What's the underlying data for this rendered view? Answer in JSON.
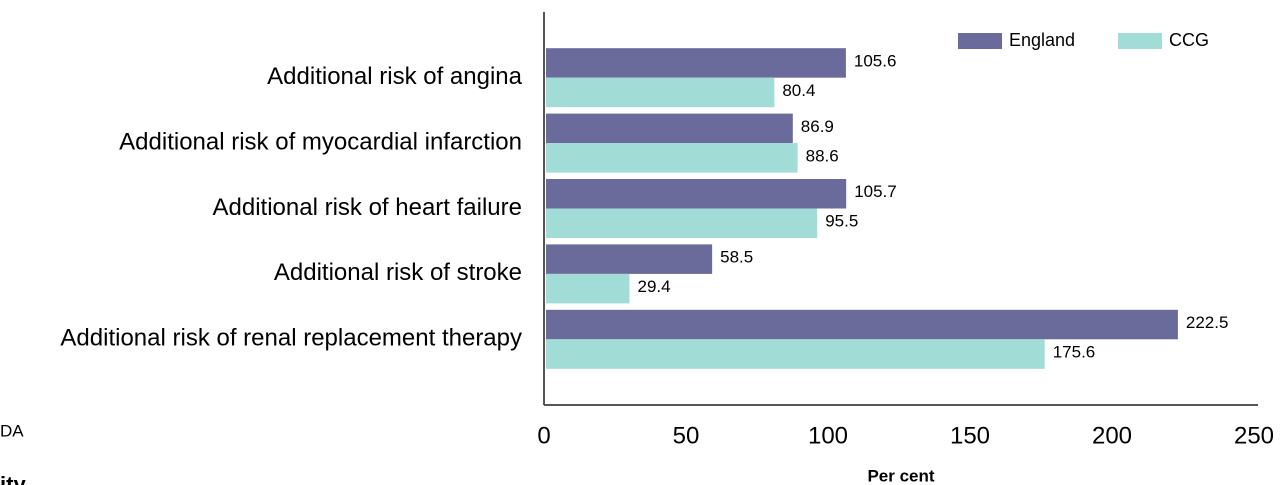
{
  "chart_data": {
    "type": "hbar",
    "categories": [
      "Additional risk of angina",
      "Additional risk of myocardial infarction",
      "Additional risk of heart failure",
      "Additional risk of stroke",
      "Additional risk of renal replacement therapy"
    ],
    "series": [
      {
        "name": "England",
        "color": "#6b6b9b",
        "values": [
          105.6,
          86.9,
          105.7,
          58.5,
          222.5
        ]
      },
      {
        "name": "CCG",
        "color": "#a2dcd6",
        "values": [
          80.4,
          88.6,
          95.5,
          29.4,
          175.6
        ]
      }
    ],
    "xlabel": "Per cent",
    "xlim": [
      0,
      250
    ],
    "xticks": [
      0,
      50,
      100,
      150,
      200,
      250
    ],
    "grid": false,
    "legend": "top-right"
  },
  "cropped_text": [
    "DA",
    "ity"
  ]
}
